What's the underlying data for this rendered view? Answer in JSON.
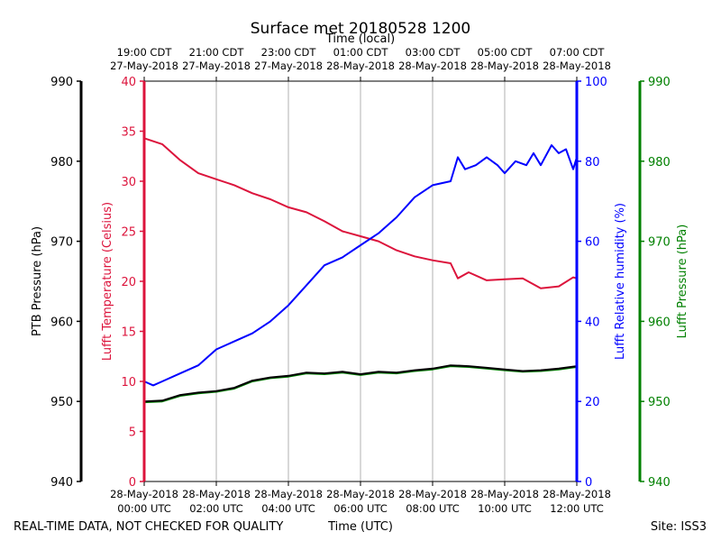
{
  "chart_data": {
    "type": "line",
    "title": "Surface met 20180528 1200",
    "top_axis_label": "Time (local)",
    "top_ticks": [
      {
        "line1": "19:00 CDT",
        "line2": "27-May-2018",
        "x_hours": 0
      },
      {
        "line1": "21:00 CDT",
        "line2": "27-May-2018",
        "x_hours": 2
      },
      {
        "line1": "23:00 CDT",
        "line2": "27-May-2018",
        "x_hours": 4
      },
      {
        "line1": "01:00 CDT",
        "line2": "28-May-2018",
        "x_hours": 6
      },
      {
        "line1": "03:00 CDT",
        "line2": "28-May-2018",
        "x_hours": 8
      },
      {
        "line1": "05:00 CDT",
        "line2": "28-May-2018",
        "x_hours": 10
      },
      {
        "line1": "07:00 CDT",
        "line2": "28-May-2018",
        "x_hours": 12
      }
    ],
    "bottom_ticks": [
      {
        "line1": "28-May-2018",
        "line2": "00:00 UTC",
        "x_hours": 0
      },
      {
        "line1": "28-May-2018",
        "line2": "02:00 UTC",
        "x_hours": 2
      },
      {
        "line1": "28-May-2018",
        "line2": "04:00 UTC",
        "x_hours": 4
      },
      {
        "line1": "28-May-2018",
        "line2": "06:00 UTC",
        "x_hours": 6
      },
      {
        "line1": "28-May-2018",
        "line2": "08:00 UTC",
        "x_hours": 8
      },
      {
        "line1": "28-May-2018",
        "line2": "10:00 UTC",
        "x_hours": 10
      },
      {
        "line1": "28-May-2018",
        "line2": "12:00 UTC",
        "x_hours": 12
      }
    ],
    "xlabel": "Time (UTC)",
    "xlim": [
      0,
      12
    ],
    "grid": "vertical",
    "footer_left": "REAL-TIME DATA, NOT CHECKED FOR QUALITY",
    "footer_right": "Site: ISS3",
    "axes": {
      "ptb": {
        "label": "PTB Pressure (hPa)",
        "ylim": [
          940,
          990
        ],
        "ticks": [
          940,
          950,
          960,
          970,
          980,
          990
        ],
        "color": "#000000"
      },
      "temp": {
        "label": "Lufft Temperature (Celsius)",
        "ylim": [
          0,
          40
        ],
        "ticks": [
          0,
          5,
          10,
          15,
          20,
          25,
          30,
          35,
          40
        ],
        "color": "#dc143c"
      },
      "rh": {
        "label": "Lufft Relative humidity (%)",
        "ylim": [
          0,
          100
        ],
        "ticks": [
          0,
          20,
          40,
          60,
          80,
          100
        ],
        "color": "#0000ff"
      },
      "lp": {
        "label": "Lufft Pressure (hPa)",
        "ylim": [
          940,
          990
        ],
        "ticks": [
          940,
          950,
          960,
          970,
          980,
          990
        ],
        "color": "#008000"
      }
    },
    "series": [
      {
        "name": "Lufft Temperature",
        "axis": "temp",
        "color": "#dc143c",
        "x": [
          0,
          0.5,
          1.0,
          1.5,
          2.0,
          2.5,
          3.0,
          3.5,
          4.0,
          4.5,
          5.0,
          5.5,
          6.0,
          6.5,
          7.0,
          7.5,
          8.0,
          8.5,
          8.7,
          9.0,
          9.5,
          10.0,
          10.5,
          11.0,
          11.5,
          11.9,
          12.0
        ],
        "values": [
          34.3,
          33.7,
          32.1,
          30.8,
          30.2,
          29.6,
          28.8,
          28.2,
          27.4,
          26.9,
          26.0,
          25.0,
          24.5,
          24.0,
          23.1,
          22.5,
          22.1,
          21.8,
          20.3,
          20.9,
          20.1,
          20.2,
          20.3,
          19.3,
          19.5,
          20.4,
          20.3
        ]
      },
      {
        "name": "Lufft Relative humidity",
        "axis": "rh",
        "color": "#0000ff",
        "x": [
          0,
          0.25,
          0.5,
          1.0,
          1.5,
          2.0,
          2.5,
          3.0,
          3.5,
          4.0,
          4.5,
          5.0,
          5.5,
          6.0,
          6.5,
          7.0,
          7.5,
          8.0,
          8.5,
          8.7,
          8.9,
          9.2,
          9.5,
          9.8,
          10.0,
          10.3,
          10.6,
          10.8,
          11.0,
          11.3,
          11.5,
          11.7,
          11.9,
          12.0
        ],
        "values": [
          25,
          24,
          25,
          27,
          29,
          33,
          35,
          37,
          40,
          44,
          49,
          54,
          56,
          59,
          62,
          66,
          71,
          74,
          75,
          81,
          78,
          79,
          81,
          79,
          77,
          80,
          79,
          82,
          79,
          84,
          82,
          83,
          78,
          81
        ]
      },
      {
        "name": "Lufft Pressure",
        "axis": "lp",
        "color": "#008000",
        "x": [
          0,
          0.5,
          1.0,
          1.5,
          2.0,
          2.5,
          3.0,
          3.5,
          4.0,
          4.5,
          5.0,
          5.5,
          6.0,
          6.5,
          7.0,
          7.5,
          8.0,
          8.5,
          9.0,
          9.5,
          10.0,
          10.5,
          11.0,
          11.5,
          12.0
        ],
        "values": [
          949.9,
          950.0,
          950.7,
          951.0,
          951.2,
          951.6,
          952.5,
          952.9,
          953.1,
          953.5,
          953.4,
          953.6,
          953.3,
          953.6,
          953.5,
          953.8,
          954.0,
          954.4,
          954.3,
          954.1,
          953.9,
          953.7,
          953.8,
          954.0,
          954.3
        ]
      },
      {
        "name": "PTB Pressure",
        "axis": "ptb",
        "color": "#000000",
        "x": [
          0,
          0.5,
          1.0,
          1.5,
          2.0,
          2.5,
          3.0,
          3.5,
          4.0,
          4.5,
          5.0,
          5.5,
          6.0,
          6.5,
          7.0,
          7.5,
          8.0,
          8.5,
          9.0,
          9.5,
          10.0,
          10.5,
          11.0,
          11.5,
          12.0
        ],
        "values": [
          950.0,
          950.1,
          950.8,
          951.1,
          951.3,
          951.7,
          952.6,
          953.0,
          953.2,
          953.6,
          953.5,
          953.7,
          953.4,
          953.7,
          953.6,
          953.9,
          954.1,
          954.5,
          954.4,
          954.2,
          954.0,
          953.8,
          953.9,
          954.1,
          954.4
        ]
      }
    ]
  }
}
